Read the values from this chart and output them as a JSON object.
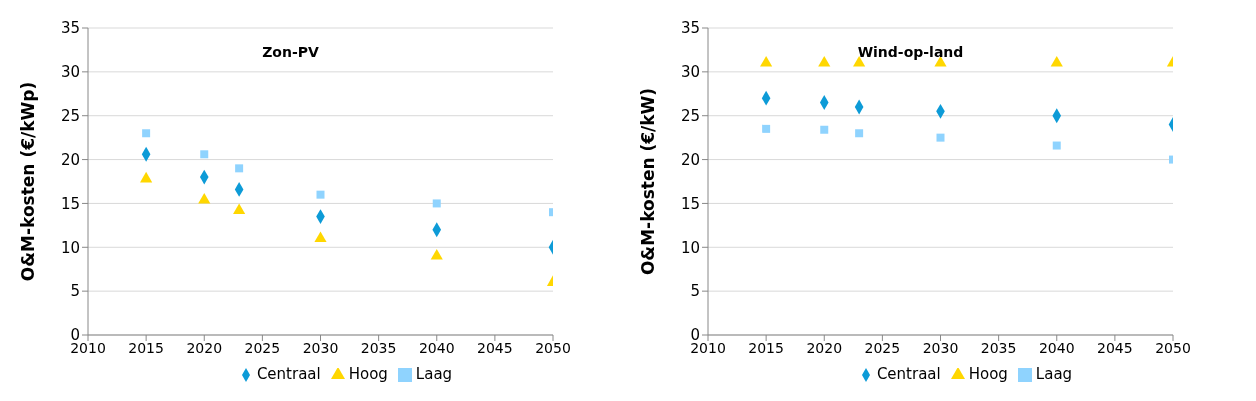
{
  "chart_data": [
    {
      "type": "scatter",
      "title": "Zon-PV",
      "ylabel": "O&M-kosten (€/kWp)",
      "x": [
        2015,
        2020,
        2023,
        2030,
        2040,
        2050
      ],
      "xlim": [
        2010,
        2050
      ],
      "xticks": [
        2010,
        2015,
        2020,
        2025,
        2030,
        2035,
        2040,
        2045,
        2050
      ],
      "ylim": [
        0,
        35
      ],
      "yticks": [
        0,
        5,
        10,
        15,
        20,
        25,
        30,
        35
      ],
      "grid": "y",
      "legend": "bottom",
      "series": [
        {
          "name": "Hoog",
          "color": "#ffd700",
          "marker": "triangle",
          "values": [
            17.8,
            15.4,
            14.2,
            11,
            9,
            6
          ]
        },
        {
          "name": "Centraal",
          "color": "#0d9bd7",
          "marker": "diamond",
          "values": [
            20.6,
            18,
            16.6,
            13.5,
            12,
            10
          ]
        },
        {
          "name": "Laag",
          "color": "#8fd3fe",
          "marker": "square",
          "values": [
            23,
            20.6,
            19,
            16,
            15,
            14
          ]
        }
      ]
    },
    {
      "type": "scatter",
      "title": "Wind-op-land",
      "ylabel": "O&M-kosten (€/kW)",
      "x": [
        2015,
        2020,
        2023,
        2030,
        2040,
        2050
      ],
      "xlim": [
        2010,
        2050
      ],
      "xticks": [
        2010,
        2015,
        2020,
        2025,
        2030,
        2035,
        2040,
        2045,
        2050
      ],
      "ylim": [
        0,
        35
      ],
      "yticks": [
        0,
        5,
        10,
        15,
        20,
        25,
        30,
        35
      ],
      "grid": "y",
      "legend": "bottom",
      "series": [
        {
          "name": "Hoog",
          "color": "#ffd700",
          "marker": "triangle",
          "values": [
            31,
            31,
            31,
            31,
            31,
            31
          ]
        },
        {
          "name": "Centraal",
          "color": "#0d9bd7",
          "marker": "diamond",
          "values": [
            27,
            26.5,
            26,
            25.5,
            25,
            24
          ]
        },
        {
          "name": "Laag",
          "color": "#8fd3fe",
          "marker": "square",
          "values": [
            23.5,
            23.4,
            23,
            22.5,
            21.6,
            20
          ]
        }
      ]
    }
  ]
}
